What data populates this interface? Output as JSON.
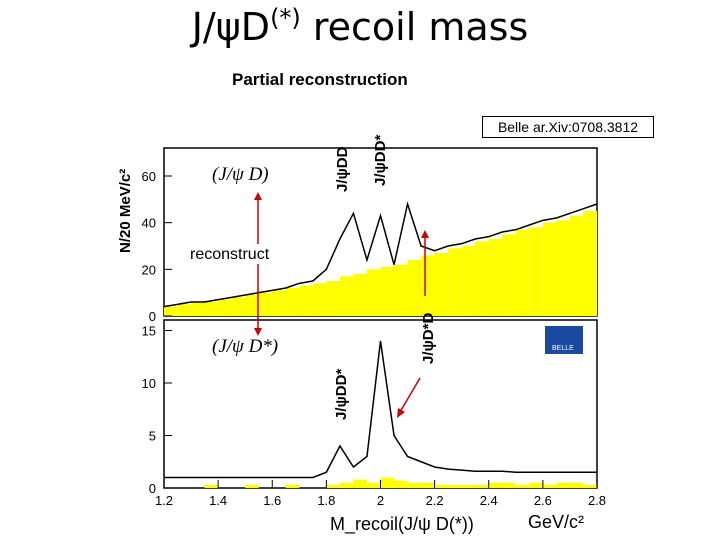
{
  "title": {
    "main": "J/ψD",
    "sup": "(*)",
    "rest": " recoil mass"
  },
  "subtitle": "Partial reconstruction",
  "reference": "Belle ar.Xiv:0708.3812",
  "annotations": {
    "top_label": "(J/ψ D)",
    "bottom_label": "(J/ψ D*)",
    "reconstruct": "reconstruct",
    "peak1": "J/ψDD",
    "peak2": "J/ψDD*",
    "peak3": "J/ψD*D",
    "peak4": "J/ψDD*"
  },
  "logo": {
    "text": "BELLE",
    "color": "#1a4aa0"
  },
  "colors": {
    "fill": "#ffff00",
    "axis": "#000000",
    "arrow": "#cc0000"
  },
  "chart_data": [
    {
      "type": "bar",
      "name": "top",
      "ylabel": "N/20 MeV/c²",
      "xlim": [
        1.2,
        2.8
      ],
      "ylim": [
        0,
        72
      ],
      "yticks": [
        0,
        20,
        40,
        60
      ],
      "x": [
        1.2,
        1.25,
        1.3,
        1.35,
        1.4,
        1.45,
        1.5,
        1.55,
        1.6,
        1.65,
        1.7,
        1.75,
        1.8,
        1.85,
        1.9,
        1.95,
        2.0,
        2.05,
        2.1,
        2.15,
        2.2,
        2.25,
        2.3,
        2.35,
        2.4,
        2.45,
        2.5,
        2.55,
        2.6,
        2.65,
        2.7,
        2.75,
        2.8
      ],
      "bkg": [
        4,
        5,
        6,
        6,
        7,
        8,
        9,
        10,
        11,
        12,
        13,
        14,
        15,
        17,
        18,
        20,
        21,
        22,
        24,
        26,
        27,
        29,
        30,
        32,
        33,
        35,
        37,
        38,
        40,
        41,
        43,
        45,
        47
      ],
      "fit": [
        4,
        5,
        6,
        6,
        7,
        8,
        9,
        10,
        11,
        12,
        14,
        15,
        20,
        33,
        44,
        24,
        43,
        22,
        48,
        30,
        28,
        30,
        31,
        33,
        34,
        36,
        37,
        39,
        41,
        42,
        44,
        46,
        48
      ]
    },
    {
      "type": "bar",
      "name": "bottom",
      "xlabel": "M_recoil(J/ψ D(*))",
      "xunit": "GeV/c²",
      "xlim": [
        1.2,
        2.8
      ],
      "ylim": [
        0,
        16
      ],
      "xticks": [
        1.2,
        1.4,
        1.6,
        1.8,
        2.0,
        2.2,
        2.4,
        2.6,
        2.8
      ],
      "xticklabels": [
        "1.2",
        "1.4",
        "1.6",
        "1.8",
        "2",
        "2.2",
        "2.4",
        "2.6",
        "2.8"
      ],
      "yticks": [
        0,
        5,
        10,
        15
      ],
      "x": [
        1.2,
        1.25,
        1.3,
        1.35,
        1.4,
        1.45,
        1.5,
        1.55,
        1.6,
        1.65,
        1.7,
        1.75,
        1.8,
        1.85,
        1.9,
        1.95,
        2.0,
        2.05,
        2.1,
        2.15,
        2.2,
        2.25,
        2.3,
        2.35,
        2.4,
        2.45,
        2.5,
        2.55,
        2.6,
        2.65,
        2.7,
        2.75,
        2.8
      ],
      "bkg": [
        0,
        0,
        0,
        0.3,
        0,
        0,
        0.3,
        0,
        0,
        0.3,
        0,
        0,
        0.3,
        0.5,
        0.8,
        0.5,
        1.0,
        0.7,
        0.5,
        0.5,
        0.3,
        0.3,
        0.3,
        0.3,
        0.5,
        0.5,
        0.3,
        0.5,
        0.3,
        0.5,
        0.5,
        0.3,
        0.5
      ],
      "fit": [
        1,
        1,
        1,
        1,
        1,
        1,
        1,
        1,
        1,
        1,
        1,
        1,
        1.5,
        4,
        2,
        3,
        14,
        5,
        3,
        2.5,
        2,
        1.8,
        1.7,
        1.6,
        1.6,
        1.6,
        1.5,
        1.5,
        1.5,
        1.5,
        1.5,
        1.5,
        1.5
      ]
    }
  ]
}
